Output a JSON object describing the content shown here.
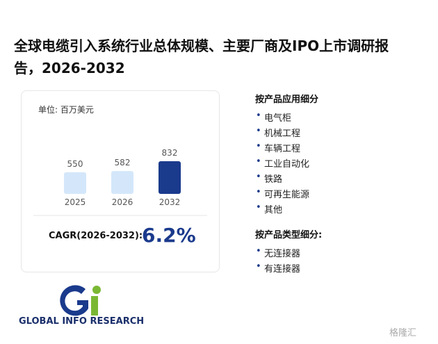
{
  "title": "全球电缆引入系统行业总体规模、主要厂商及IPO上市调研报告，2026-2032",
  "chart_data": {
    "type": "bar",
    "unit_label": "单位: 百万美元",
    "categories": [
      "2025",
      "2026",
      "2032"
    ],
    "values": [
      550,
      582,
      832
    ],
    "colors": [
      "#d4e7fa",
      "#d4e7fa",
      "#1a3a8c"
    ],
    "cagr_label": "CAGR(2026-2032):",
    "cagr_value": "6.2%"
  },
  "segments": [
    {
      "heading": "按产品应用细分",
      "items": [
        "电气柜",
        "机械工程",
        "车辆工程",
        "工业自动化",
        "铁路",
        "可再生能源",
        "其他"
      ]
    },
    {
      "heading": "按产品类型细分:",
      "items": [
        "无连接器",
        "有连接器"
      ]
    }
  ],
  "logo": "GLOBAL INFO RESEARCH",
  "watermark": "格隆汇"
}
